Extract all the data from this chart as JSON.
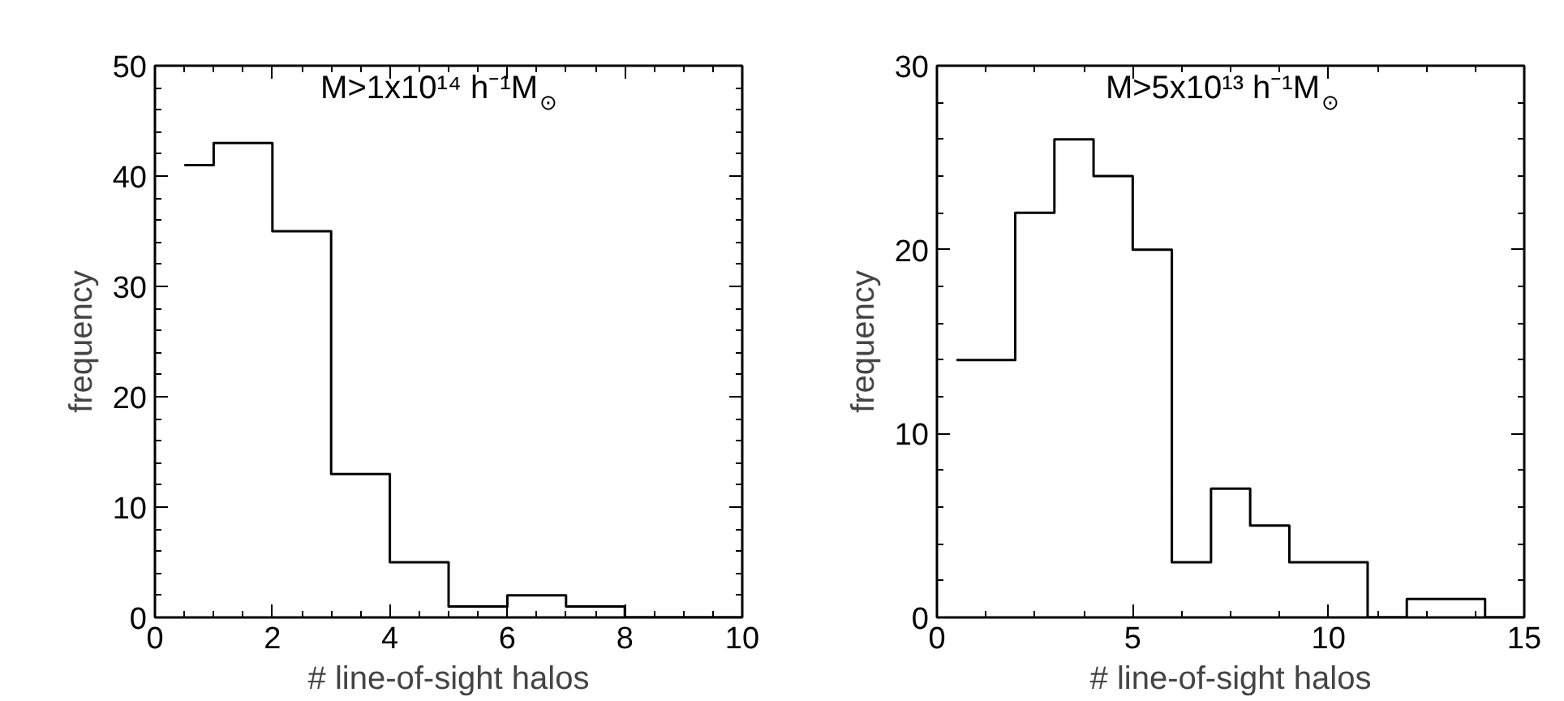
{
  "chart_data": [
    {
      "type": "histogram",
      "title": "M>1x10¹⁴ h⁻¹M$_{⊙}$",
      "xlabel": "# line-of-sight halos",
      "ylabel": "frequency",
      "color": "#000000",
      "bins": [
        0.5,
        1,
        2,
        3,
        4,
        5,
        6,
        7,
        8,
        10
      ],
      "values": [
        41,
        43,
        35,
        13,
        5,
        1,
        2,
        1,
        0
      ],
      "xlim": [
        0,
        10
      ],
      "ylim": [
        0,
        50
      ],
      "xticks": [
        0,
        2,
        4,
        6,
        8,
        10
      ],
      "yticks": [
        0,
        10,
        20,
        30,
        40,
        50
      ]
    },
    {
      "type": "histogram",
      "title": "M>5x10¹³ h⁻¹M$_{⊙}$",
      "xlabel": "# line-of-sight halos",
      "ylabel": "frequency",
      "color": "#000000",
      "bins": [
        0.5,
        2,
        3,
        4,
        5,
        6,
        7,
        8,
        9,
        11,
        12,
        14,
        15
      ],
      "values": [
        14,
        22,
        26,
        24,
        20,
        3,
        7,
        5,
        3,
        0,
        1,
        0
      ],
      "xlim": [
        0,
        15
      ],
      "ylim": [
        0,
        30
      ],
      "xticks": [
        0,
        5,
        10,
        15
      ],
      "yticks": [
        0,
        10,
        20,
        30
      ]
    }
  ]
}
